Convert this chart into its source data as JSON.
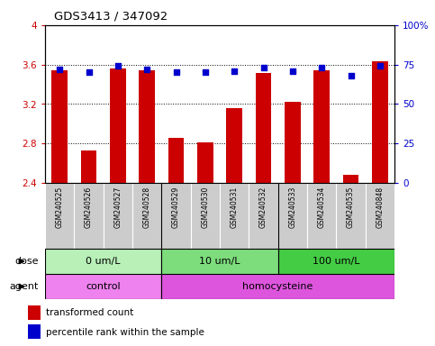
{
  "title": "GDS3413 / 347092",
  "samples": [
    "GSM240525",
    "GSM240526",
    "GSM240527",
    "GSM240528",
    "GSM240529",
    "GSM240530",
    "GSM240531",
    "GSM240532",
    "GSM240533",
    "GSM240534",
    "GSM240535",
    "GSM240848"
  ],
  "transformed_count": [
    3.54,
    2.73,
    3.56,
    3.54,
    2.86,
    2.81,
    3.16,
    3.52,
    3.22,
    3.54,
    2.48,
    3.63
  ],
  "percentile_rank": [
    72,
    70,
    74,
    72,
    70,
    70,
    71,
    73,
    71,
    73,
    68,
    74
  ],
  "ylim_left": [
    2.4,
    4.0
  ],
  "ylim_right": [
    0,
    100
  ],
  "yticks_left": [
    2.4,
    2.8,
    3.2,
    3.6,
    4.0
  ],
  "yticks_right": [
    0,
    25,
    50,
    75,
    100
  ],
  "ytick_labels_left": [
    "2.4",
    "2.8",
    "3.2",
    "3.6",
    "4"
  ],
  "ytick_labels_right": [
    "0",
    "25",
    "50",
    "75",
    "100%"
  ],
  "bar_color": "#cc0000",
  "dot_color": "#0000cc",
  "bar_width": 0.55,
  "dose_groups": [
    {
      "label": "0 um/L",
      "start": 0,
      "end": 3
    },
    {
      "label": "10 um/L",
      "start": 4,
      "end": 7
    },
    {
      "label": "100 um/L",
      "start": 8,
      "end": 11
    }
  ],
  "dose_colors": [
    "#b8f0b8",
    "#7ddd7d",
    "#44cc44"
  ],
  "agent_groups": [
    {
      "label": "control",
      "start": 0,
      "end": 3
    },
    {
      "label": "homocysteine",
      "start": 4,
      "end": 11
    }
  ],
  "agent_colors": [
    "#ee82ee",
    "#dd55dd"
  ],
  "dose_label": "dose",
  "agent_label": "agent",
  "legend_red": "transformed count",
  "legend_blue": "percentile rank within the sample",
  "bg_color": "#ffffff",
  "tick_label_color_left": "#cc0000",
  "tick_label_color_right": "#0000cc",
  "sample_area_bg": "#cccccc",
  "group_boundary_cols": [
    3.5,
    7.5
  ]
}
